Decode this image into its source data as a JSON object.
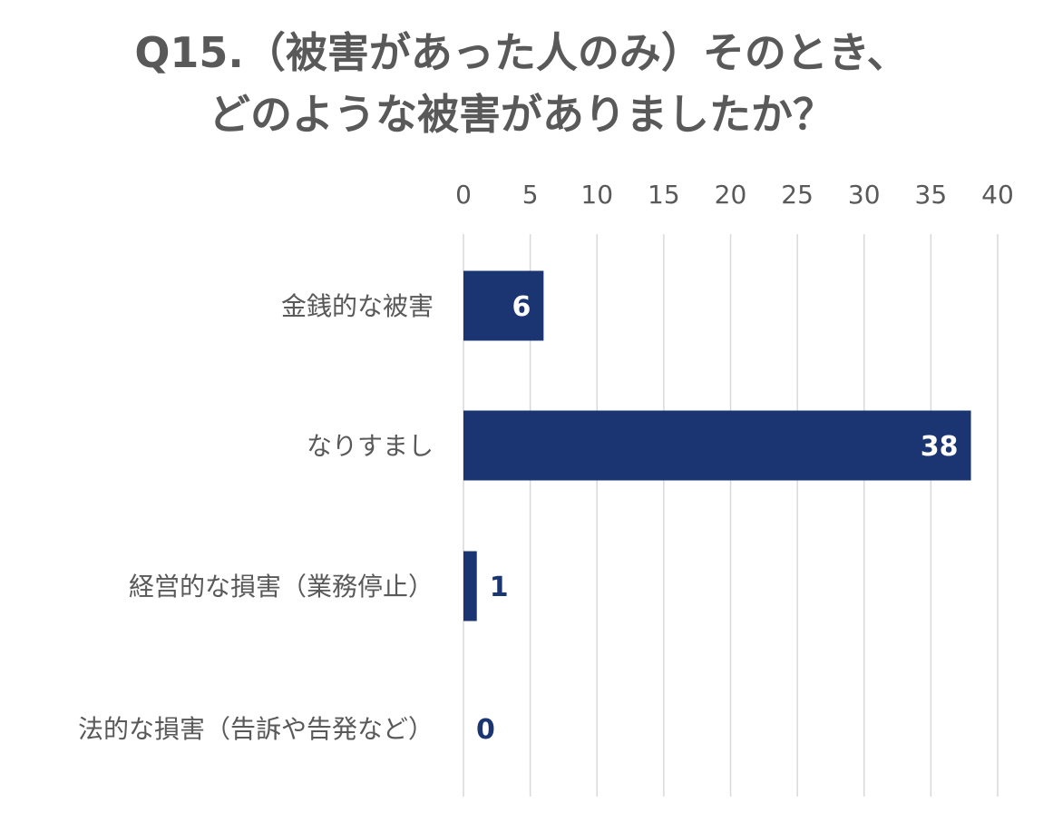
{
  "chart_data": {
    "type": "bar",
    "orientation": "horizontal",
    "title_lines": [
      "Q15.（被害があった人のみ）そのとき、",
      "どのような被害がありましたか？"
    ],
    "categories": [
      "金銭的な被害",
      "なりすまし",
      "経営的な損害（業務停止）",
      "法的な損害（告訴や告発など）"
    ],
    "values": [
      6,
      38,
      1,
      0
    ],
    "data_labels": [
      "6",
      "38",
      "1",
      "0"
    ],
    "xlim": [
      0,
      40
    ],
    "x_ticks": [
      0,
      5,
      10,
      15,
      20,
      25,
      30,
      35,
      40
    ],
    "x_axis_position": "top",
    "grid": true,
    "legend": "none",
    "colors": {
      "bar": "#1b3572",
      "label_inside": "#ffffff",
      "label_outside": "#1b3572",
      "grid": "#d9d9d9",
      "text": "#595959"
    }
  }
}
